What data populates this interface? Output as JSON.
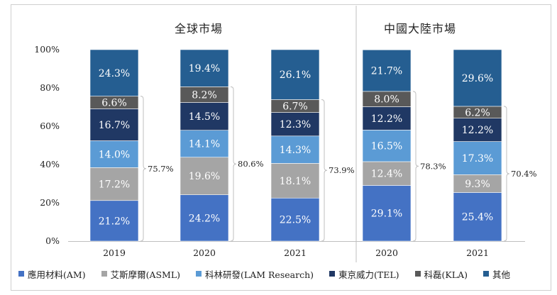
{
  "chart_data": {
    "type": "bar",
    "stacked": true,
    "panels": [
      {
        "title": "全球市場",
        "categories": [
          "2019",
          "2020",
          "2021"
        ]
      },
      {
        "title": "中國大陸市場",
        "categories": [
          "2020",
          "2021"
        ]
      }
    ],
    "ylim": [
      0,
      100
    ],
    "yticks": [
      "0%",
      "20%",
      "40%",
      "60%",
      "80%",
      "100%"
    ],
    "series": [
      {
        "name": "應用材料(AM)",
        "color": "#4472c4",
        "values": [
          21.2,
          24.2,
          22.5,
          29.1,
          25.4
        ],
        "labels": [
          "21.2%",
          "24.2%",
          "22.5%",
          "29.1%",
          "25.4%"
        ]
      },
      {
        "name": "艾斯摩爾(ASML)",
        "color": "#a5a5a5",
        "values": [
          17.2,
          19.6,
          18.1,
          12.4,
          9.3
        ],
        "labels": [
          "17.2%",
          "19.6%",
          "18.1%",
          "12.4%",
          "9.3%"
        ]
      },
      {
        "name": "科林研發(LAM Research)",
        "color": "#5b9bd5",
        "values": [
          14.0,
          14.1,
          14.3,
          16.5,
          17.3
        ],
        "labels": [
          "14.0%",
          "14.1%",
          "14.3%",
          "16.5%",
          "17.3%"
        ]
      },
      {
        "name": "東京威力(TEL)",
        "color": "#203864",
        "values": [
          16.7,
          14.5,
          12.3,
          12.2,
          12.2
        ],
        "labels": [
          "16.7%",
          "14.5%",
          "12.3%",
          "12.2%",
          "12.2%"
        ]
      },
      {
        "name": "科磊(KLA)",
        "color": "#595959",
        "values": [
          6.6,
          8.2,
          6.7,
          8.0,
          6.2
        ],
        "labels": [
          "6.6%",
          "8.2%",
          "6.7%",
          "8.0%",
          "6.2%"
        ]
      },
      {
        "name": "其他",
        "color": "#255e91",
        "values": [
          24.3,
          19.4,
          26.1,
          21.7,
          29.6
        ],
        "labels": [
          "24.3%",
          "19.4%",
          "26.1%",
          "21.7%",
          "29.6%"
        ]
      }
    ],
    "bracket_totals": [
      "75.7%",
      "80.6%",
      "73.9%",
      "78.3%",
      "70.4%"
    ],
    "bracket_span": "AM through KLA combined share",
    "legend_position": "bottom"
  }
}
